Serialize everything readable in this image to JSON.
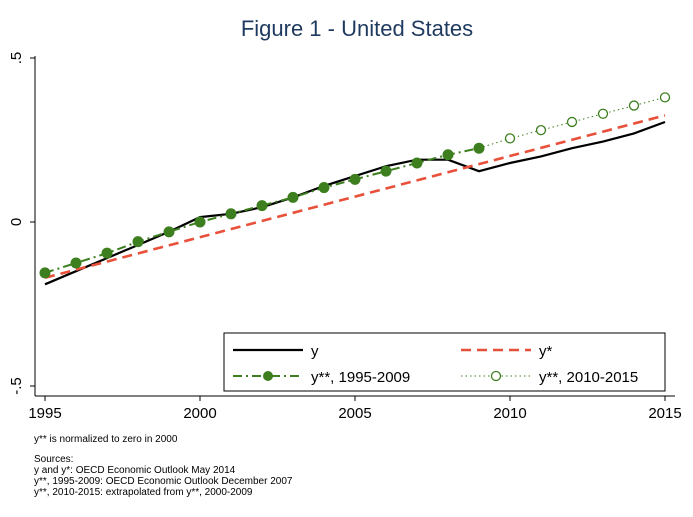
{
  "chart_data": {
    "type": "line",
    "title": "Figure 1 - United States",
    "xlabel": "",
    "ylabel": "",
    "xlim": [
      1995,
      2015
    ],
    "ylim": [
      -0.5,
      0.5
    ],
    "x_ticks": [
      1995,
      2000,
      2005,
      2010,
      2015
    ],
    "x_tick_labels": [
      "1995",
      "2000",
      "2005",
      "2010",
      "2015"
    ],
    "y_ticks": [
      -0.5,
      0,
      0.5
    ],
    "y_tick_labels": [
      "-.5",
      "0",
      ".5"
    ],
    "grid": false,
    "legend_position": "bottom-right",
    "series": [
      {
        "name": "y",
        "style": "solid",
        "color": "#000000",
        "x": [
          1995,
          1996,
          1997,
          1998,
          1999,
          2000,
          2001,
          2002,
          2003,
          2004,
          2005,
          2006,
          2007,
          2008,
          2009,
          2010,
          2011,
          2012,
          2013,
          2014,
          2015
        ],
        "values": [
          -0.19,
          -0.15,
          -0.11,
          -0.07,
          -0.03,
          0.015,
          0.025,
          0.045,
          0.075,
          0.11,
          0.14,
          0.17,
          0.19,
          0.19,
          0.155,
          0.18,
          0.2,
          0.225,
          0.245,
          0.27,
          0.305
        ]
      },
      {
        "name": "y*",
        "style": "dashed",
        "color": "#e8503a",
        "x": [
          1995,
          2015
        ],
        "values": [
          -0.17,
          0.325
        ]
      },
      {
        "name": "y**, 1995-2009",
        "style": "dash-dot-filled",
        "color": "#3d7f1f",
        "x": [
          1995,
          1996,
          1997,
          1998,
          1999,
          2000,
          2001,
          2002,
          2003,
          2004,
          2005,
          2006,
          2007,
          2008,
          2009
        ],
        "values": [
          -0.155,
          -0.125,
          -0.095,
          -0.06,
          -0.03,
          0.0,
          0.025,
          0.05,
          0.075,
          0.105,
          0.13,
          0.155,
          0.18,
          0.205,
          0.225
        ]
      },
      {
        "name": "y**, 2010-2015",
        "style": "dotted-hollow",
        "color": "#3d7f1f",
        "x": [
          2009,
          2010,
          2011,
          2012,
          2013,
          2014,
          2015
        ],
        "values": [
          0.225,
          0.255,
          0.28,
          0.305,
          0.33,
          0.355,
          0.38
        ]
      }
    ]
  },
  "notes": {
    "line1": "y** is normalized to zero in 2000",
    "sources_title": "Sources:",
    "source1": "y and y*: OECD Economic Outlook May 2014",
    "source2": "y**, 1995-2009: OECD Economic Outlook December 2007",
    "source3": "y**, 2010-2015: extrapolated from y**, 2000-2009"
  }
}
